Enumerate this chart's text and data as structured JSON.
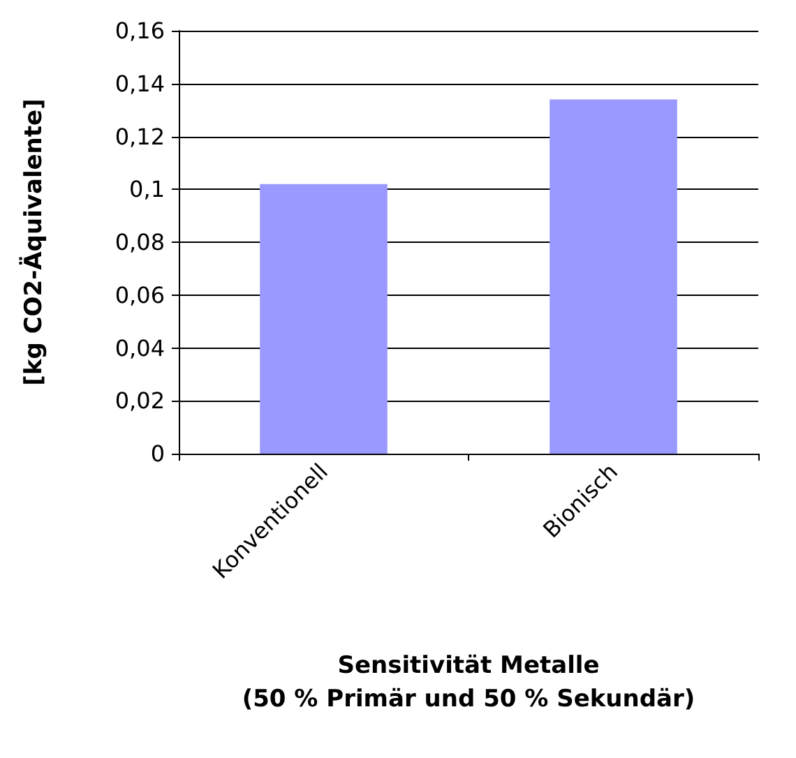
{
  "chart_data": {
    "type": "bar",
    "xlabel": "Sensitivität Metalle\n(50 % Primär und 50 % Sekundär)",
    "ylabel": "[kg CO2-Äquivalente]",
    "categories": [
      "Konventionell",
      "Bionisch"
    ],
    "values": [
      0.102,
      0.134
    ],
    "color": "#9999ff",
    "ylim": [
      0,
      0.16
    ],
    "yticks": [
      0,
      {
        "value": 0.02,
        "label": "0,02"
      },
      {
        "value": 0.04,
        "label": "0,04"
      },
      {
        "value": 0.06,
        "label": "0,06"
      },
      {
        "value": 0.08,
        "label": "0,08"
      },
      {
        "value": 0.1,
        "label": "0,1"
      },
      {
        "value": 0.12,
        "label": "0,12"
      },
      {
        "value": 0.14,
        "label": "0,14"
      },
      {
        "value": 0.16,
        "label": "0,16"
      }
    ],
    "grid": "y"
  }
}
